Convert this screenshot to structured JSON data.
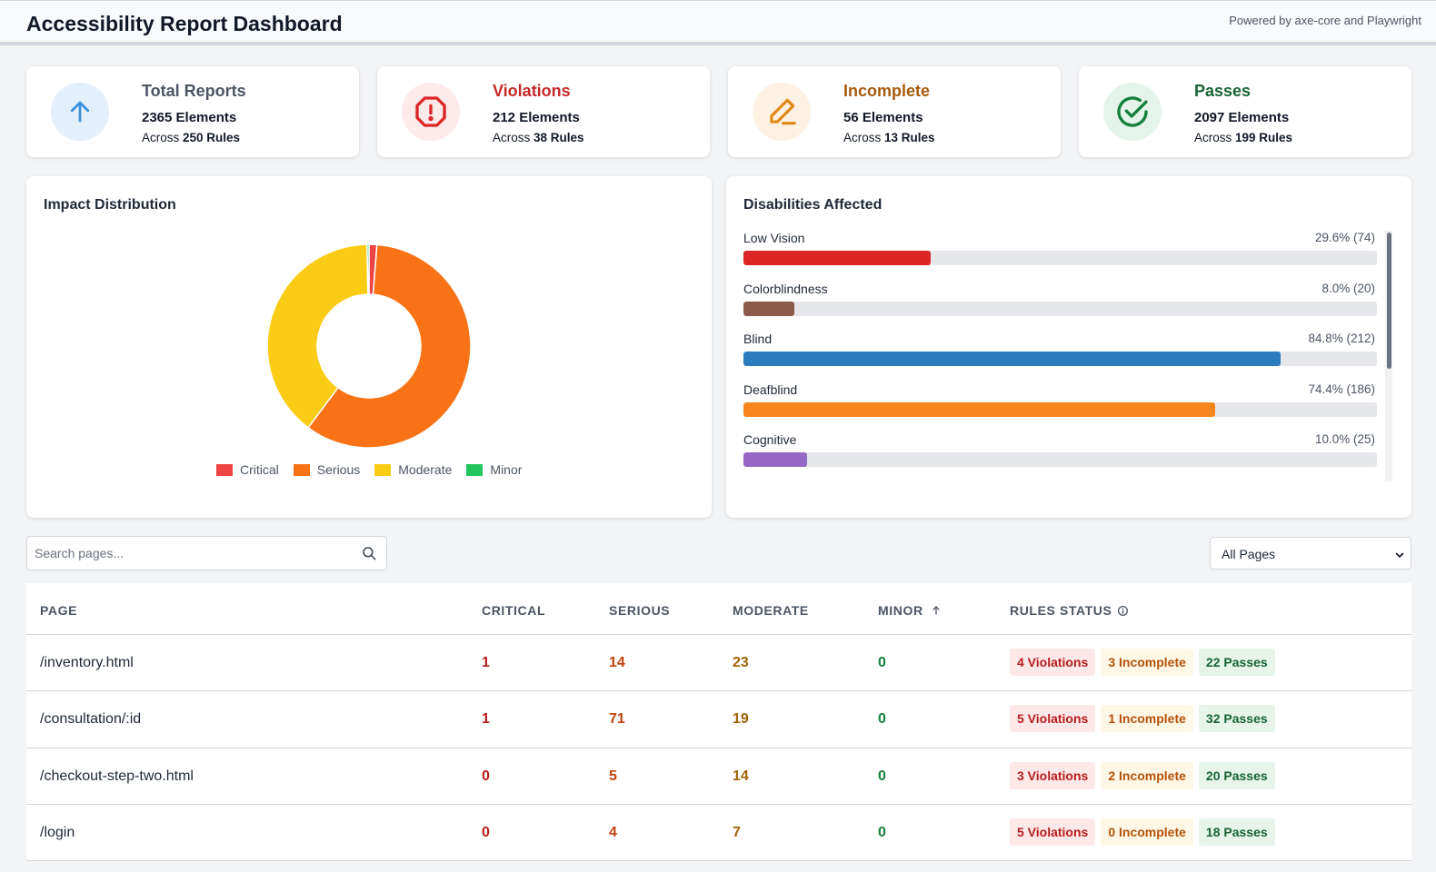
{
  "header": {
    "title": "Accessibility Report Dashboard",
    "powered_by": "Powered by axe-core and Playwright"
  },
  "stats": [
    {
      "title": "Total Reports",
      "elements": "2365 Elements",
      "across_prefix": "Across",
      "rules": "250 Rules",
      "icon": "arrow-up-icon",
      "color": "#3b8fd9"
    },
    {
      "title": "Violations",
      "elements": "212 Elements",
      "across_prefix": "Across",
      "rules": "38 Rules",
      "icon": "alert-octagon-icon",
      "color": "#dc2626"
    },
    {
      "title": "Incomplete",
      "elements": "56 Elements",
      "across_prefix": "Across",
      "rules": "13 Rules",
      "icon": "pencil-icon",
      "color": "#d97706"
    },
    {
      "title": "Passes",
      "elements": "2097 Elements",
      "across_prefix": "Across",
      "rules": "199 Rules",
      "icon": "check-circle-icon",
      "color": "#15803d"
    }
  ],
  "impact": {
    "title": "Impact Distribution",
    "chart_data": {
      "type": "pie",
      "categories": [
        "Critical",
        "Serious",
        "Moderate",
        "Minor"
      ],
      "values": [
        2,
        94,
        63,
        0.5
      ],
      "colors": [
        "#ef4444",
        "#f97316",
        "#facc15",
        "#22c55e"
      ],
      "legend": "bottom"
    }
  },
  "disabilities": {
    "title": "Disabilities Affected",
    "chart_data": {
      "type": "bar",
      "orientation": "horizontal",
      "categories": [
        "Low Vision",
        "Colorblindness",
        "Blind",
        "Deafblind",
        "Cognitive"
      ],
      "values": [
        29.6,
        8.0,
        84.8,
        74.4,
        10.0
      ],
      "labels": [
        "29.6% (74)",
        "8.0% (20)",
        "84.8% (212)",
        "74.4% (186)",
        "10.0% (25)"
      ],
      "colors": [
        "#dc2626",
        "#8b5a4b",
        "#2b7bbf",
        "#f7861d",
        "#9468c4"
      ],
      "xlim": [
        0,
        100
      ]
    }
  },
  "search": {
    "placeholder": "Search pages..."
  },
  "filter": {
    "selected": "All Pages"
  },
  "table": {
    "headers": {
      "page": "PAGE",
      "critical": "CRITICAL",
      "serious": "SERIOUS",
      "moderate": "MODERATE",
      "minor": "MINOR",
      "rules": "RULES STATUS"
    },
    "rows": [
      {
        "page": "/inventory.html",
        "critical": "1",
        "serious": "14",
        "moderate": "23",
        "minor": "0",
        "violations": "4 Violations",
        "incomplete": "3 Incomplete",
        "passes": "22 Passes"
      },
      {
        "page": "/consultation/:id",
        "critical": "1",
        "serious": "71",
        "moderate": "19",
        "minor": "0",
        "violations": "5 Violations",
        "incomplete": "1 Incomplete",
        "passes": "32 Passes"
      },
      {
        "page": "/checkout-step-two.html",
        "critical": "0",
        "serious": "5",
        "moderate": "14",
        "minor": "0",
        "violations": "3 Violations",
        "incomplete": "2 Incomplete",
        "passes": "20 Passes"
      },
      {
        "page": "/login",
        "critical": "0",
        "serious": "4",
        "moderate": "7",
        "minor": "0",
        "violations": "5 Violations",
        "incomplete": "0 Incomplete",
        "passes": "18 Passes"
      }
    ],
    "num_colors": {
      "critical": "#b91c1c",
      "serious": "#c2410c",
      "moderate": "#a16207",
      "minor": "#15803d"
    }
  }
}
